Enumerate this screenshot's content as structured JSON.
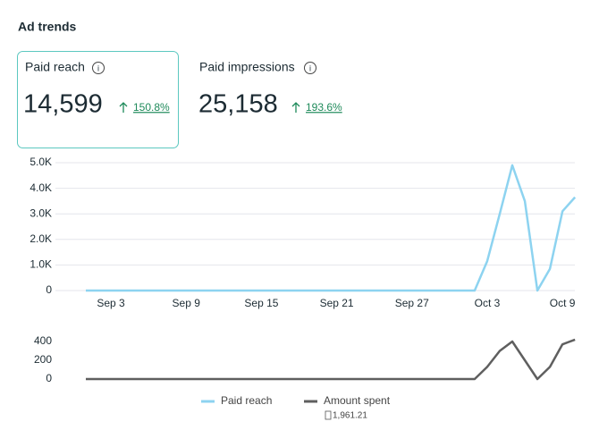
{
  "header": {
    "title": "Ad trends"
  },
  "kpis": [
    {
      "label": "Paid reach",
      "value": "14,599",
      "change": "150.8%"
    },
    {
      "label": "Paid impressions",
      "value": "25,158",
      "change": "193.6%"
    }
  ],
  "chart_data": [
    {
      "type": "line",
      "categories": [
        null,
        null,
        "Sep 3",
        null,
        null,
        null,
        null,
        null,
        "Sep 9",
        null,
        null,
        null,
        null,
        null,
        "Sep 15",
        null,
        null,
        null,
        null,
        null,
        "Sep 21",
        null,
        null,
        null,
        null,
        null,
        "Sep 27",
        null,
        null,
        null,
        null,
        null,
        "Oct 3",
        null,
        null,
        null,
        null,
        null,
        "Oct 9",
        null
      ],
      "series": [
        {
          "name": "Paid reach",
          "color": "#8dd3f0",
          "values": [
            0,
            0,
            0,
            0,
            0,
            0,
            0,
            0,
            0,
            0,
            0,
            0,
            0,
            0,
            0,
            0,
            0,
            0,
            0,
            0,
            0,
            0,
            0,
            0,
            0,
            0,
            0,
            0,
            0,
            0,
            0,
            0,
            1150,
            3000,
            4900,
            3500,
            0,
            850,
            3100,
            3650
          ]
        }
      ],
      "ylim": [
        0,
        5000
      ],
      "yticks": [
        0,
        {
          "value": 1000,
          "label": "1.0K"
        },
        {
          "value": 2000,
          "label": "2.0K"
        },
        {
          "value": 3000,
          "label": "3.0K"
        },
        {
          "value": 4000,
          "label": "4.0K"
        },
        {
          "value": 5000,
          "label": "5.0K"
        }
      ],
      "grid": true
    },
    {
      "type": "line",
      "series": [
        {
          "name": "Amount spent",
          "color": "#5f5f5f",
          "total_label": "1,961.21",
          "values": [
            0,
            0,
            0,
            0,
            0,
            0,
            0,
            0,
            0,
            0,
            0,
            0,
            0,
            0,
            0,
            0,
            0,
            0,
            0,
            0,
            0,
            0,
            0,
            0,
            0,
            0,
            0,
            0,
            0,
            0,
            0,
            0,
            130,
            300,
            400,
            200,
            0,
            130,
            370,
            420
          ]
        }
      ],
      "ylim": [
        0,
        400
      ],
      "yticks": [
        0,
        200,
        400
      ],
      "grid": false
    }
  ]
}
